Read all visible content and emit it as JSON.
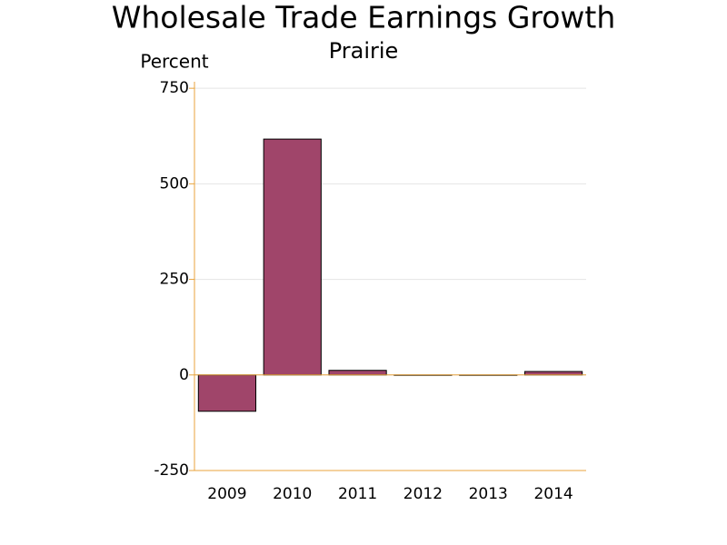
{
  "chart_data": {
    "type": "bar",
    "title": "Wholesale Trade Earnings Growth",
    "subtitle": "Prairie",
    "y_label": "Percent",
    "categories": [
      "2009",
      "2010",
      "2011",
      "2012",
      "2013",
      "2014"
    ],
    "values": [
      -95,
      617,
      12,
      -1,
      -1,
      9
    ],
    "color": "#a0456a",
    "ylim": [
      -250,
      767
    ],
    "yticks": [
      -250,
      0,
      250,
      500,
      750
    ],
    "grid": true
  }
}
